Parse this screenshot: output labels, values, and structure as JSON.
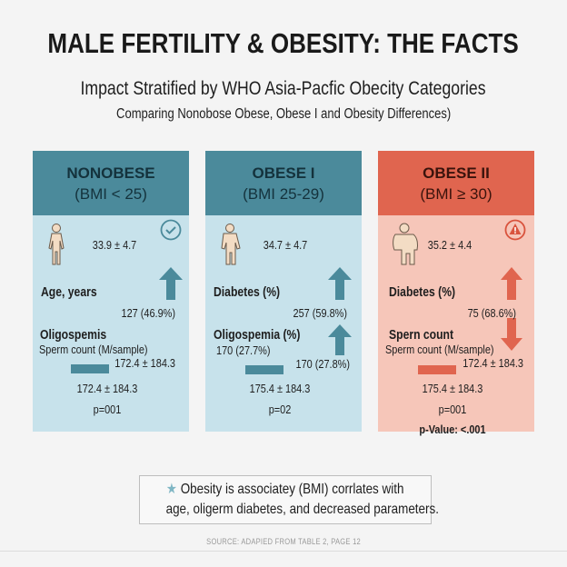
{
  "header": {
    "title": "MALE FERTILITY & OBESITY: THE FACTS",
    "subtitle": "Impact Stratified by WHO Asia-Pacfic Obecity Categories",
    "subtitle2": "Comparing Nonobose Obese, Obese I and Obesity Differences)"
  },
  "colors": {
    "teal_header": "#4b8a9b",
    "teal_body": "#c7e2eb",
    "red_header": "#e0654f",
    "red_body": "#f6c6b9"
  },
  "panels": [
    {
      "name": "NONOBESE",
      "bmi": "(BMI < 25)",
      "status_icon": "check-circle-icon",
      "age_value": "33.9 ± 4.7",
      "label1": "Age, years",
      "value1": "127 (46.9%)",
      "label2": "Oligospemis",
      "label3": "Sperm count (M/sample)",
      "value2": "172.4 ± 184.3",
      "value3": "172.4 ± 184.3",
      "p": "p=001"
    },
    {
      "name": "OBESE I",
      "bmi": "(BMI 25-29)",
      "age_value": "34.7 ± 4.7",
      "label1": "Diabetes (%)",
      "value1": "257 (59.8%)",
      "label2": "Oligospemia (%)",
      "label3": "170 (27.7%)",
      "value2": "170 (27.8%)",
      "value3": "175.4 ± 184.3",
      "p": "p=02"
    },
    {
      "name": "OBESE II",
      "bmi": "(BMI ≥ 30)",
      "status_icon": "warning-icon",
      "age_value": "35.2 ± 4.4",
      "label1": "Diabetes (%)",
      "value1": "75 (68.6%)",
      "label2": "Spern count",
      "label3": "Sperm count (M/sample)",
      "value2": "172.4 ± 184.3",
      "value3": "175.4 ± 184.3",
      "p": "p=001",
      "p_value": "p-Value: <.001"
    }
  ],
  "summary": {
    "line1": "Obesity is associatey (BMI) corrlates with",
    "line2": "age, oligerm diabetes, and decreased parameters."
  },
  "source": "SOURCE: ADAPIED FROM TABLE 2, PAGE 12"
}
